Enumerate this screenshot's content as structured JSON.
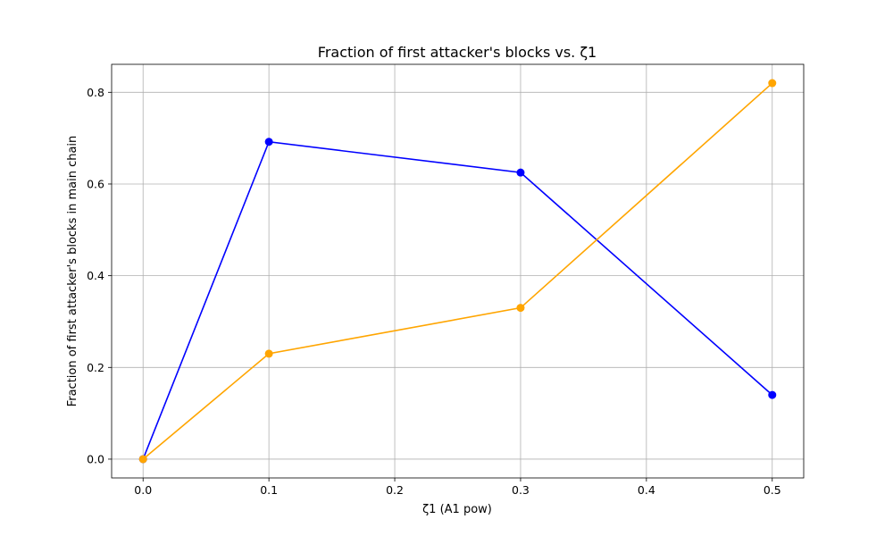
{
  "chart_data": {
    "type": "line",
    "title": "Fraction of first attacker's blocks vs. ζ1",
    "xlabel": "ζ1 (A1 pow)",
    "ylabel": "Fraction of first attacker's blocks in main chain",
    "x": [
      0.0,
      0.1,
      0.3,
      0.5
    ],
    "xlim": [
      -0.025,
      0.525
    ],
    "ylim": [
      -0.041,
      0.861
    ],
    "xticks": [
      0.0,
      0.1,
      0.2,
      0.3,
      0.4,
      0.5
    ],
    "xtick_labels": [
      "0.0",
      "0.1",
      "0.2",
      "0.3",
      "0.4",
      "0.5"
    ],
    "yticks": [
      0.0,
      0.2,
      0.4,
      0.6,
      0.8
    ],
    "ytick_labels": [
      "0.0",
      "0.2",
      "0.4",
      "0.6",
      "0.8"
    ],
    "grid": true,
    "series": [
      {
        "color": "#0000ff",
        "marker": "circle",
        "values": [
          0.0,
          0.692,
          0.625,
          0.14
        ]
      },
      {
        "color": "#ffa500",
        "marker": "circle",
        "values": [
          0.0,
          0.23,
          0.33,
          0.82
        ]
      }
    ]
  }
}
